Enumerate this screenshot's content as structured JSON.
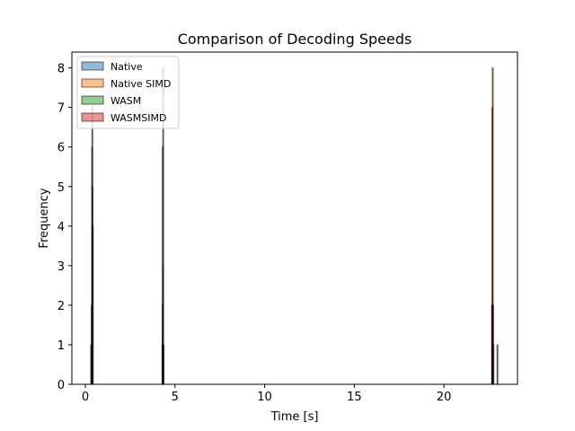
{
  "chart_data": {
    "type": "bar",
    "title": "Comparison of Decoding Speeds",
    "xlabel": "Time [s]",
    "ylabel": "Frequency",
    "xlim": [
      -0.75,
      24.1
    ],
    "ylim": [
      0,
      8.4
    ],
    "xticks": [
      0,
      5,
      10,
      15,
      20
    ],
    "yticks": [
      0,
      1,
      2,
      3,
      4,
      5,
      6,
      7,
      8
    ],
    "grid": false,
    "legend_position": "upper left",
    "bar_width": 0.05,
    "series": [
      {
        "name": "Native",
        "color": "#1f77b4",
        "bars": [
          {
            "x": 0.33,
            "y": 1
          },
          {
            "x": 0.38,
            "y": 6
          },
          {
            "x": 4.3,
            "y": 1
          },
          {
            "x": 4.32,
            "y": 6
          },
          {
            "x": 22.68,
            "y": 2
          },
          {
            "x": 22.7,
            "y": 7
          },
          {
            "x": 22.98,
            "y": 1
          }
        ]
      },
      {
        "name": "Native SIMD",
        "color": "#ff7f0e",
        "bars": [
          {
            "x": 0.34,
            "y": 1
          },
          {
            "x": 0.39,
            "y": 7
          },
          {
            "x": 4.31,
            "y": 2
          },
          {
            "x": 4.34,
            "y": 8
          },
          {
            "x": 22.69,
            "y": 2
          },
          {
            "x": 22.72,
            "y": 8
          }
        ]
      },
      {
        "name": "WASM",
        "color": "#2ca02c",
        "bars": [
          {
            "x": 0.35,
            "y": 2
          },
          {
            "x": 0.4,
            "y": 5
          },
          {
            "x": 4.33,
            "y": 3
          },
          {
            "x": 4.36,
            "y": 1
          },
          {
            "x": 22.7,
            "y": 1
          },
          {
            "x": 22.74,
            "y": 2
          }
        ]
      },
      {
        "name": "WASMSIMD",
        "color": "#d62728",
        "bars": [
          {
            "x": 0.36,
            "y": 1
          },
          {
            "x": 0.42,
            "y": 4
          },
          {
            "x": 4.35,
            "y": 1
          },
          {
            "x": 22.71,
            "y": 2
          },
          {
            "x": 22.76,
            "y": 1
          }
        ]
      }
    ]
  }
}
